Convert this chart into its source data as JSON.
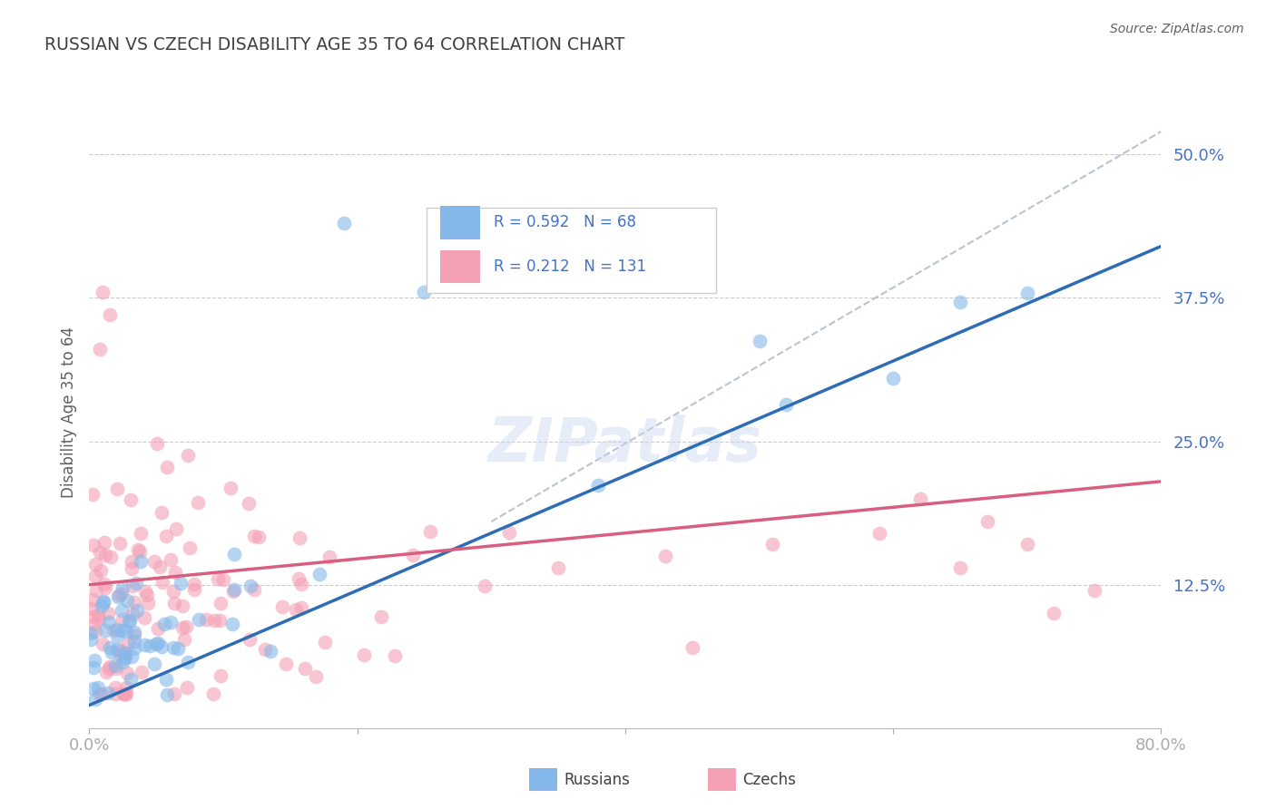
{
  "title": "RUSSIAN VS CZECH DISABILITY AGE 35 TO 64 CORRELATION CHART",
  "source": "Source: ZipAtlas.com",
  "ylabel": "Disability Age 35 to 64",
  "xlim": [
    0.0,
    0.8
  ],
  "ylim": [
    0.0,
    0.55
  ],
  "xtick_vals": [
    0.0,
    0.2,
    0.4,
    0.6,
    0.8
  ],
  "xtick_labels": [
    "0.0%",
    "",
    "",
    "",
    "80.0%"
  ],
  "ytick_vals": [
    0.0,
    0.125,
    0.25,
    0.375,
    0.5
  ],
  "ytick_labels": [
    "",
    "12.5%",
    "25.0%",
    "37.5%",
    "50.0%"
  ],
  "grid_color": "#cccccc",
  "background_color": "#ffffff",
  "russian_color": "#85b8ea",
  "czech_color": "#f4a0b5",
  "russian_R": 0.592,
  "russian_N": 68,
  "czech_R": 0.212,
  "czech_N": 131,
  "russian_line_color": "#2e6db4",
  "czech_line_color": "#d95f80",
  "diag_line_color": "#b0b8c8",
  "legend_label_russian": "Russians",
  "legend_label_czech": "Czechs",
  "tick_color": "#4472c4",
  "title_color": "#404040",
  "source_color": "#606060",
  "ylabel_color": "#606060"
}
